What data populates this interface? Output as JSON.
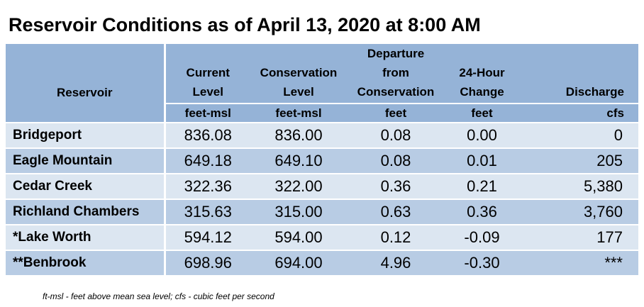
{
  "title": "Reservoir Conditions as of April 13, 2020 at 8:00 AM",
  "columns": [
    {
      "label_lines": [
        "",
        "",
        "",
        "Reservoir"
      ],
      "unit": ""
    },
    {
      "label_lines": [
        "",
        "Current",
        "Level",
        ""
      ],
      "unit": "feet-msl"
    },
    {
      "label_lines": [
        "",
        "Conservation",
        "Level",
        ""
      ],
      "unit": "feet-msl"
    },
    {
      "label_lines": [
        "Departure",
        "from",
        "Conservation",
        ""
      ],
      "unit": "feet"
    },
    {
      "label_lines": [
        "",
        "24-Hour",
        "Change",
        ""
      ],
      "unit": "feet"
    },
    {
      "label_lines": [
        "",
        "",
        "",
        "Discharge"
      ],
      "unit": "cfs"
    }
  ],
  "rows": [
    {
      "reservoir": "Bridgeport",
      "current_level": "836.08",
      "conservation_level": "836.00",
      "departure": "0.08",
      "change_24h": "0.00",
      "discharge": "0"
    },
    {
      "reservoir": "Eagle Mountain",
      "current_level": "649.18",
      "conservation_level": "649.10",
      "departure": "0.08",
      "change_24h": "0.01",
      "discharge": "205"
    },
    {
      "reservoir": "Cedar Creek",
      "current_level": "322.36",
      "conservation_level": "322.00",
      "departure": "0.36",
      "change_24h": "0.21",
      "discharge": "5,380"
    },
    {
      "reservoir": "Richland Chambers",
      "current_level": "315.63",
      "conservation_level": "315.00",
      "departure": "0.63",
      "change_24h": "0.36",
      "discharge": "3,760"
    },
    {
      "reservoir": "*Lake Worth",
      "current_level": "594.12",
      "conservation_level": "594.00",
      "departure": "0.12",
      "change_24h": "-0.09",
      "discharge": "177"
    },
    {
      "reservoir": "**Benbrook",
      "current_level": "698.96",
      "conservation_level": "694.00",
      "departure": "4.96",
      "change_24h": "-0.30",
      "discharge": "***"
    }
  ],
  "footnote": "ft-msl - feet above mean sea level; cfs - cubic feet per second",
  "colors": {
    "header_bg": "#95b3d7",
    "row_light": "#dce6f1",
    "row_dark": "#b8cce4",
    "divider": "#ffffff"
  }
}
